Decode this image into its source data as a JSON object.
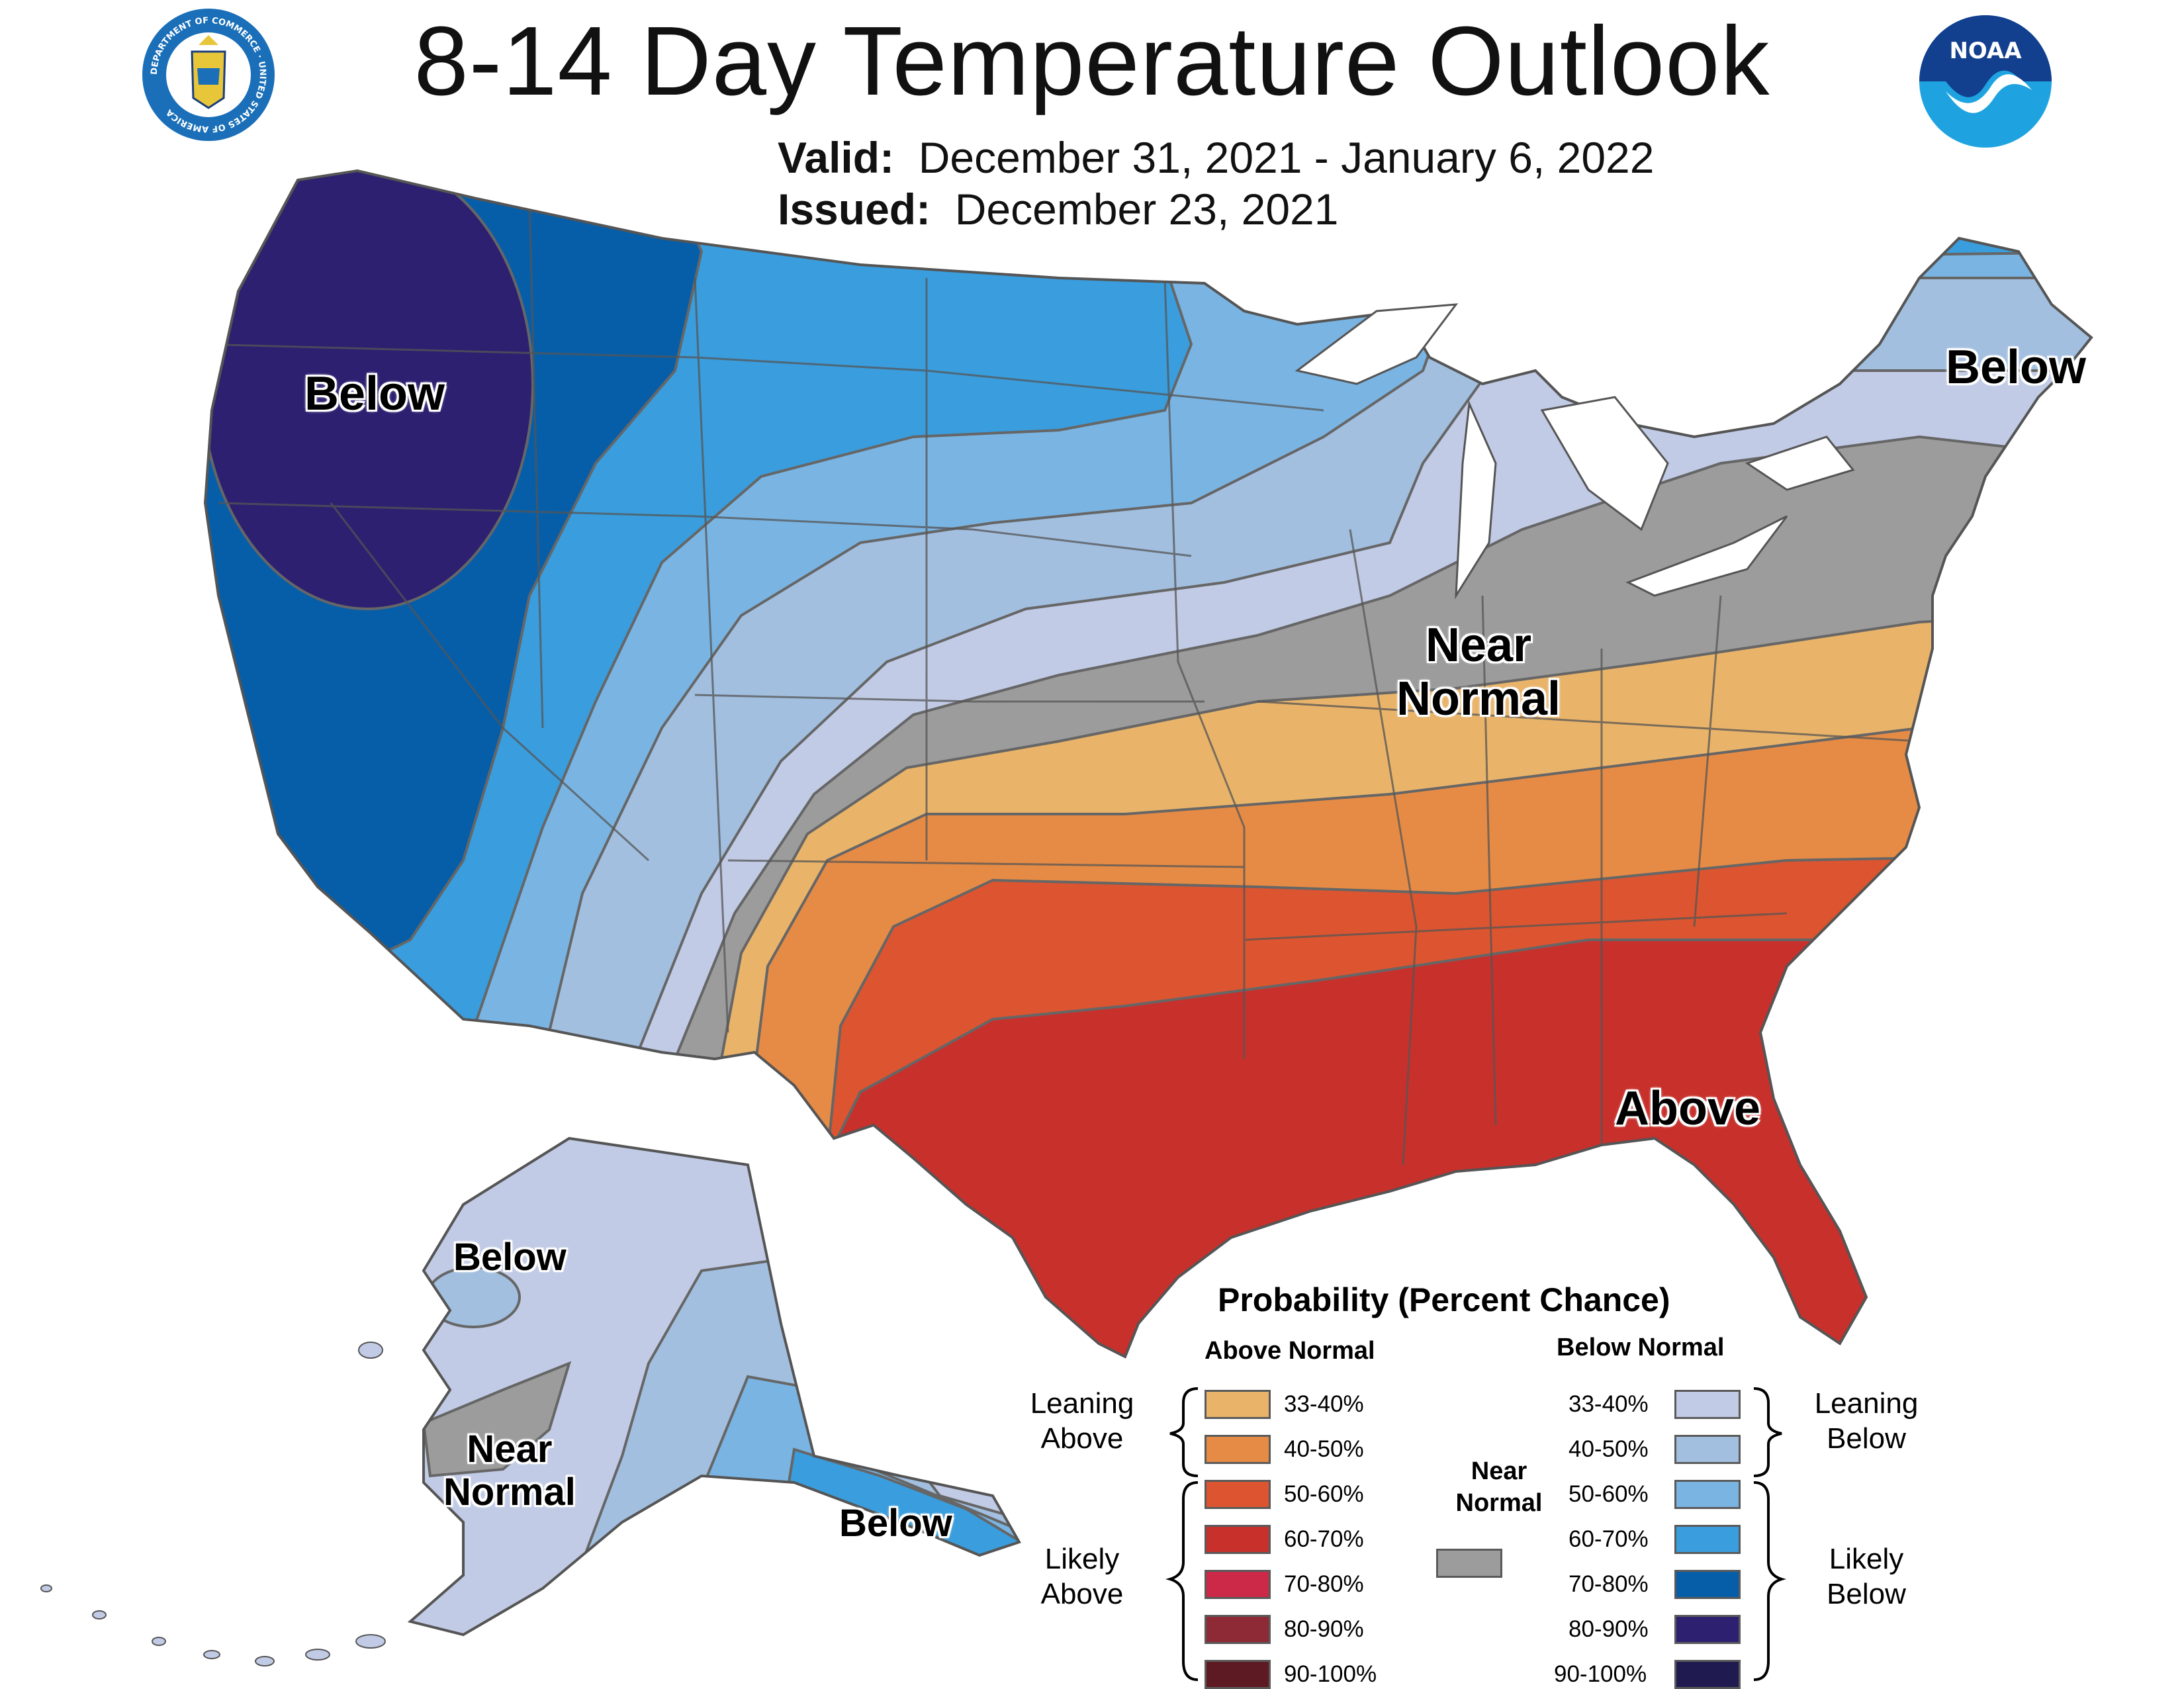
{
  "header": {
    "title": "8-14 Day Temperature Outlook",
    "valid_label": "Valid:",
    "valid_value": "December 31, 2021 - January 6, 2022",
    "issued_label": "Issued:",
    "issued_value": "December 23, 2021"
  },
  "logos": {
    "commerce_seal_text": "DEPARTMENT OF COMMERCE · UNITED STATES OF AMERICA",
    "noaa_text": "NOAA"
  },
  "colors": {
    "above_33_40": "#e9b46a",
    "above_40_50": "#e68b45",
    "above_50_60": "#dc5530",
    "above_60_70": "#c8302c",
    "above_70_80": "#cc2848",
    "above_80_90": "#8e2a36",
    "above_90_100": "#5e1a22",
    "near_normal": "#9c9c9c",
    "below_33_40": "#c1cbe6",
    "below_40_50": "#a2bfe0",
    "below_50_60": "#7ab4e2",
    "below_60_70": "#3a9ddd",
    "below_70_80": "#075ea8",
    "below_80_90": "#2d2070",
    "below_90_100": "#1f1a50"
  },
  "region_labels": {
    "west_below": "Below",
    "northeast_below": "Below",
    "near_normal_line1": "Near",
    "near_normal_line2": "Normal",
    "southeast_above": "Above",
    "alaska_below_north": "Below",
    "alaska_near_line1": "Near",
    "alaska_near_line2": "Normal",
    "alaska_below_south": "Below"
  },
  "legend": {
    "title": "Probability (Percent Chance)",
    "above_header": "Above Normal",
    "below_header": "Below Normal",
    "near_header_line1": "Near",
    "near_header_line2": "Normal",
    "leaning_above_line1": "Leaning",
    "leaning_above_line2": "Above",
    "likely_above_line1": "Likely",
    "likely_above_line2": "Above",
    "leaning_below_line1": "Leaning",
    "leaning_below_line2": "Below",
    "likely_below_line1": "Likely",
    "likely_below_line2": "Below",
    "ranges": [
      "33-40%",
      "40-50%",
      "50-60%",
      "60-70%",
      "70-80%",
      "80-90%",
      "90-100%"
    ]
  }
}
